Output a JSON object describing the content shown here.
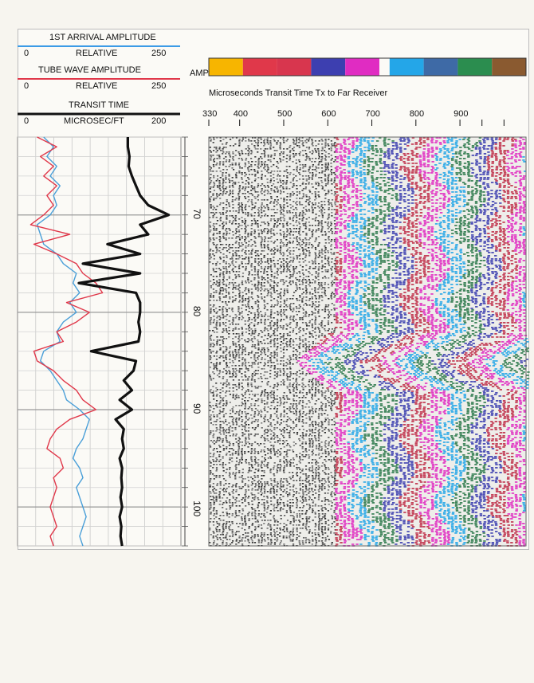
{
  "header": {
    "track1": {
      "title": "1ST ARRIVAL AMPLITUDE",
      "left": "0",
      "mid": "RELATIVE",
      "right": "250",
      "color": "#3c9be6"
    },
    "track2": {
      "title": "TUBE WAVE AMPLITUDE",
      "left": "0",
      "mid": "RELATIVE",
      "right": "250",
      "color": "#e0384a"
    },
    "track3": {
      "title": "TRANSIT TIME",
      "left": "0",
      "mid": "MICROSEC/FT",
      "right": "200",
      "color": "#111111"
    },
    "amp_label": "AMP",
    "xaxis_title": "Microseconds Transit Time Tx to Far Receiver",
    "colorbar_colors": [
      "#f7b500",
      "#e0384a",
      "#d8364e",
      "#3d3fb0",
      "#e02cc2",
      "#24a6e8",
      "#3e6aa6",
      "#2b8d4f",
      "#8a5a30"
    ]
  },
  "chart_data": {
    "type": "line",
    "title": "",
    "depth_ticks": [
      70,
      80,
      90,
      100
    ],
    "depth_labels": [
      "70",
      "80",
      "90",
      "100"
    ],
    "depth_range": [
      62,
      104
    ],
    "x_ticks": [
      330,
      400,
      500,
      600,
      700,
      800,
      900
    ],
    "x_labels": [
      "330",
      "400",
      "500",
      "600",
      "700",
      "800",
      "900"
    ],
    "x_range": [
      330,
      1050
    ],
    "grid": true,
    "series": [
      {
        "name": "1ST ARRIVAL AMPLITUDE",
        "color": "#4a9fd8",
        "xlim": [
          0,
          250
        ],
        "depth": [
          62,
          63,
          64,
          65,
          66,
          67,
          68,
          69,
          70,
          71,
          72,
          73,
          74,
          75,
          76,
          77,
          78,
          79,
          80,
          81,
          82,
          83,
          84,
          85,
          86,
          87,
          88,
          89,
          90,
          91,
          92,
          93,
          94,
          95,
          96,
          97,
          98,
          99,
          100,
          101,
          102,
          103,
          104
        ],
        "values": [
          40,
          55,
          45,
          60,
          50,
          65,
          55,
          60,
          50,
          30,
          35,
          40,
          60,
          70,
          90,
          85,
          95,
          80,
          90,
          70,
          60,
          65,
          40,
          35,
          50,
          60,
          70,
          75,
          95,
          110,
          105,
          100,
          90,
          85,
          95,
          100,
          90,
          95,
          100,
          105,
          100,
          95,
          100
        ]
      },
      {
        "name": "TUBE WAVE AMPLITUDE",
        "color": "#e0384a",
        "xlim": [
          0,
          250
        ],
        "depth": [
          62,
          63,
          64,
          65,
          66,
          67,
          68,
          69,
          70,
          71,
          72,
          73,
          74,
          75,
          76,
          77,
          78,
          79,
          80,
          81,
          82,
          83,
          84,
          85,
          86,
          87,
          88,
          89,
          90,
          91,
          92,
          93,
          94,
          95,
          96,
          97,
          98,
          99,
          100,
          101,
          102,
          103,
          104
        ],
        "values": [
          30,
          60,
          35,
          55,
          40,
          60,
          45,
          55,
          40,
          20,
          80,
          25,
          60,
          90,
          100,
          120,
          130,
          75,
          110,
          90,
          60,
          70,
          25,
          30,
          55,
          70,
          90,
          100,
          120,
          80,
          60,
          50,
          45,
          65,
          70,
          55,
          60,
          55,
          50,
          55,
          60,
          50,
          55
        ]
      },
      {
        "name": "TRANSIT TIME",
        "color": "#111111",
        "xlim": [
          0,
          200
        ],
        "depth": [
          62,
          63,
          64,
          65,
          66,
          67,
          68,
          69,
          70,
          71,
          72,
          73,
          74,
          75,
          76,
          77,
          78,
          79,
          80,
          81,
          82,
          83,
          84,
          85,
          86,
          87,
          88,
          89,
          90,
          91,
          92,
          93,
          94,
          95,
          96,
          97,
          98,
          99,
          100,
          101,
          102,
          103,
          104
        ],
        "values": [
          135,
          135,
          137,
          136,
          140,
          145,
          150,
          160,
          185,
          150,
          160,
          110,
          150,
          80,
          150,
          75,
          145,
          150,
          150,
          148,
          150,
          148,
          90,
          145,
          142,
          130,
          140,
          125,
          140,
          120,
          130,
          128,
          130,
          125,
          128,
          127,
          128,
          126,
          128,
          125,
          127,
          126,
          128
        ]
      }
    ]
  }
}
